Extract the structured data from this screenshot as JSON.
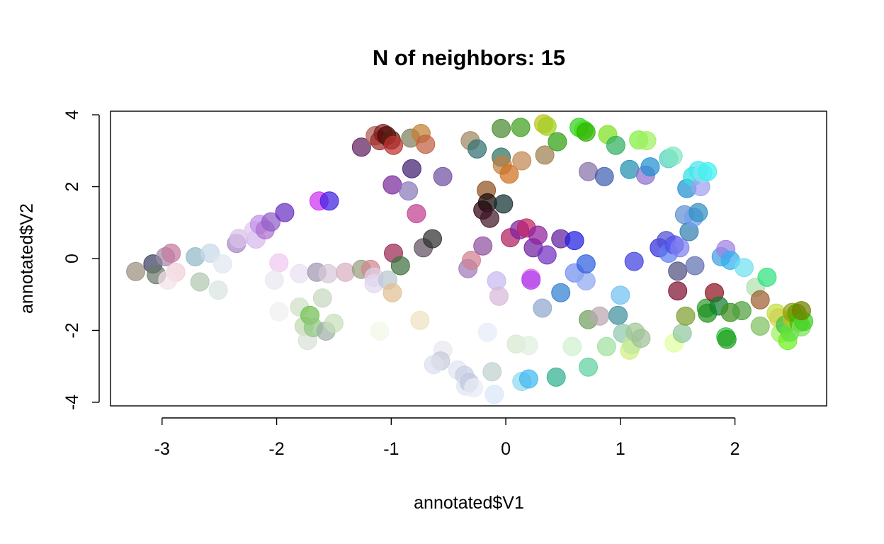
{
  "chart_data": {
    "type": "scatter",
    "title": "N of neighbors: 15",
    "xlabel": "annotated$V1",
    "ylabel": "annotated$V2",
    "xlim": [
      -3.45,
      2.8
    ],
    "ylim": [
      -4.1,
      4.1
    ],
    "xticks": [
      -3,
      -2,
      -1,
      0,
      1,
      2
    ],
    "yticks": [
      -4,
      -2,
      0,
      2,
      4
    ],
    "xtick_labels": [
      "-3",
      "-2",
      "-1",
      "0",
      "1",
      "2"
    ],
    "ytick_labels": [
      "-4",
      "-2",
      "0",
      "2",
      "4"
    ],
    "grid": false,
    "legend": "none",
    "marker": "filled circle, semi-transparent",
    "points": [
      {
        "x": -3.23,
        "y": -0.36,
        "color": "#9c9080"
      },
      {
        "x": -3.08,
        "y": -0.15,
        "color": "#3c4060"
      },
      {
        "x": -3.05,
        "y": -0.45,
        "color": "#6a7a68"
      },
      {
        "x": -2.97,
        "y": 0.05,
        "color": "#a08aa8"
      },
      {
        "x": -2.92,
        "y": 0.15,
        "color": "#c8789c"
      },
      {
        "x": -2.88,
        "y": -0.38,
        "color": "#f0d0d8"
      },
      {
        "x": -2.95,
        "y": -0.6,
        "color": "#f4e0e8"
      },
      {
        "x": -2.71,
        "y": 0.05,
        "color": "#90b8c8"
      },
      {
        "x": -2.67,
        "y": -0.65,
        "color": "#b0c8b0"
      },
      {
        "x": -2.58,
        "y": 0.15,
        "color": "#c8d8e8"
      },
      {
        "x": -2.51,
        "y": -0.88,
        "color": "#d8e4e0"
      },
      {
        "x": -2.47,
        "y": -0.15,
        "color": "#e0e8f0"
      },
      {
        "x": -2.35,
        "y": 0.42,
        "color": "#a888c8"
      },
      {
        "x": -2.33,
        "y": 0.56,
        "color": "#d8c0e8"
      },
      {
        "x": -2.18,
        "y": 0.54,
        "color": "#d8b8f0"
      },
      {
        "x": -2.2,
        "y": 0.78,
        "color": "#e0c8f0"
      },
      {
        "x": -2.15,
        "y": 0.95,
        "color": "#c090e8"
      },
      {
        "x": -2.1,
        "y": 0.8,
        "color": "#b070d0"
      },
      {
        "x": -2.05,
        "y": 1.02,
        "color": "#9060c8"
      },
      {
        "x": -1.93,
        "y": 1.28,
        "color": "#6a30c0"
      },
      {
        "x": -1.98,
        "y": -0.12,
        "color": "#f0c8f0"
      },
      {
        "x": -2.02,
        "y": -0.6,
        "color": "#e8e8f0"
      },
      {
        "x": -1.98,
        "y": -1.48,
        "color": "#f0f0f0"
      },
      {
        "x": -1.8,
        "y": -0.42,
        "color": "#e8e0f0"
      },
      {
        "x": -1.8,
        "y": -1.35,
        "color": "#d0e0c8"
      },
      {
        "x": -1.76,
        "y": -1.88,
        "color": "#c0d8b0"
      },
      {
        "x": -1.73,
        "y": -2.28,
        "color": "#d8e0d8"
      },
      {
        "x": -1.71,
        "y": -1.58,
        "color": "#70c050"
      },
      {
        "x": -1.68,
        "y": -1.92,
        "color": "#90c880"
      },
      {
        "x": -1.65,
        "y": -0.38,
        "color": "#a098b0"
      },
      {
        "x": -1.63,
        "y": 1.6,
        "color": "#d030f0"
      },
      {
        "x": -1.6,
        "y": -1.1,
        "color": "#c8d8c0"
      },
      {
        "x": -1.57,
        "y": -2.02,
        "color": "#a0b0a8"
      },
      {
        "x": -1.55,
        "y": -0.42,
        "color": "#d8c8d8"
      },
      {
        "x": -1.54,
        "y": 1.6,
        "color": "#4020e0"
      },
      {
        "x": -1.5,
        "y": -1.8,
        "color": "#c8e0b8"
      },
      {
        "x": -1.4,
        "y": -0.38,
        "color": "#d8b0c0"
      },
      {
        "x": -1.26,
        "y": -0.3,
        "color": "#98a080"
      },
      {
        "x": -1.26,
        "y": 3.1,
        "color": "#602060"
      },
      {
        "x": -1.18,
        "y": -0.3,
        "color": "#d08890"
      },
      {
        "x": -1.15,
        "y": -0.52,
        "color": "#e0d0e8"
      },
      {
        "x": -1.15,
        "y": -0.7,
        "color": "#e0d8f0"
      },
      {
        "x": -1.14,
        "y": 3.42,
        "color": "#b06050"
      },
      {
        "x": -1.1,
        "y": 3.28,
        "color": "#a02828"
      },
      {
        "x": -1.07,
        "y": 3.48,
        "color": "#802020"
      },
      {
        "x": -1.04,
        "y": 3.42,
        "color": "#500808"
      },
      {
        "x": -1.0,
        "y": 3.3,
        "color": "#582010"
      },
      {
        "x": -0.98,
        "y": 3.15,
        "color": "#c03030"
      },
      {
        "x": -1.1,
        "y": -2.02,
        "color": "#f0f8e8"
      },
      {
        "x": -1.03,
        "y": -0.6,
        "color": "#b8c8d0"
      },
      {
        "x": -0.99,
        "y": 2.05,
        "color": "#7a2a9a"
      },
      {
        "x": -0.98,
        "y": 0.15,
        "color": "#982850"
      },
      {
        "x": -0.99,
        "y": -0.95,
        "color": "#e0c090"
      },
      {
        "x": -0.92,
        "y": -0.2,
        "color": "#407040"
      },
      {
        "x": -0.85,
        "y": 1.88,
        "color": "#8878b8"
      },
      {
        "x": -0.83,
        "y": 3.35,
        "color": "#808060"
      },
      {
        "x": -0.82,
        "y": 2.5,
        "color": "#402070"
      },
      {
        "x": -0.78,
        "y": 1.25,
        "color": "#c04090"
      },
      {
        "x": -0.75,
        "y": -1.72,
        "color": "#f0e0c0"
      },
      {
        "x": -0.74,
        "y": 3.48,
        "color": "#c08030"
      },
      {
        "x": -0.72,
        "y": 0.3,
        "color": "#605060"
      },
      {
        "x": -0.7,
        "y": 3.18,
        "color": "#c06040"
      },
      {
        "x": -0.64,
        "y": 0.55,
        "color": "#303030"
      },
      {
        "x": -0.55,
        "y": 2.28,
        "color": "#7050a0"
      },
      {
        "x": -0.55,
        "y": -2.55,
        "color": "#e8e8f0"
      },
      {
        "x": -0.57,
        "y": -2.85,
        "color": "#c8ccd8"
      },
      {
        "x": -0.63,
        "y": -2.95,
        "color": "#dde0f0"
      },
      {
        "x": -0.42,
        "y": -3.1,
        "color": "#e0e4f4"
      },
      {
        "x": -0.36,
        "y": -3.25,
        "color": "#c8d0e0"
      },
      {
        "x": -0.35,
        "y": -3.55,
        "color": "#dfe4ee"
      },
      {
        "x": -0.32,
        "y": -3.45,
        "color": "#c0c8e0"
      },
      {
        "x": -0.28,
        "y": -3.6,
        "color": "#e8ecf4"
      },
      {
        "x": -0.33,
        "y": -0.28,
        "color": "#a078b8"
      },
      {
        "x": -0.3,
        "y": -0.05,
        "color": "#d08090"
      },
      {
        "x": -0.31,
        "y": 3.28,
        "color": "#a08860"
      },
      {
        "x": -0.25,
        "y": 3.05,
        "color": "#307070"
      },
      {
        "x": -0.2,
        "y": 0.35,
        "color": "#9050a0"
      },
      {
        "x": -0.2,
        "y": 1.35,
        "color": "#300010"
      },
      {
        "x": -0.17,
        "y": 1.9,
        "color": "#905020"
      },
      {
        "x": -0.16,
        "y": 1.55,
        "color": "#180808"
      },
      {
        "x": -0.14,
        "y": 1.12,
        "color": "#401828"
      },
      {
        "x": -0.16,
        "y": -2.05,
        "color": "#e8ecf8"
      },
      {
        "x": -0.12,
        "y": -3.15,
        "color": "#c0d0d0"
      },
      {
        "x": -0.1,
        "y": -3.78,
        "color": "#d8e8f8"
      },
      {
        "x": -0.08,
        "y": -0.62,
        "color": "#c8b8f0"
      },
      {
        "x": -0.06,
        "y": -1.05,
        "color": "#d8b8d8"
      },
      {
        "x": -0.04,
        "y": 3.62,
        "color": "#4a8a30"
      },
      {
        "x": -0.04,
        "y": 2.82,
        "color": "#307060"
      },
      {
        "x": -0.03,
        "y": 2.6,
        "color": "#c08040"
      },
      {
        "x": -0.02,
        "y": 1.52,
        "color": "#103030"
      },
      {
        "x": 0.03,
        "y": 2.35,
        "color": "#d07020"
      },
      {
        "x": 0.04,
        "y": 0.58,
        "color": "#b02060"
      },
      {
        "x": 0.09,
        "y": -2.38,
        "color": "#d8e8d0"
      },
      {
        "x": 0.12,
        "y": 0.8,
        "color": "#8020a0"
      },
      {
        "x": 0.13,
        "y": 3.65,
        "color": "#40a020"
      },
      {
        "x": 0.14,
        "y": 2.72,
        "color": "#c08850"
      },
      {
        "x": 0.14,
        "y": -3.42,
        "color": "#90d8f0"
      },
      {
        "x": 0.18,
        "y": 0.85,
        "color": "#c02060"
      },
      {
        "x": 0.2,
        "y": -2.42,
        "color": "#e0f0e0"
      },
      {
        "x": 0.2,
        "y": -3.35,
        "color": "#40b8f0"
      },
      {
        "x": 0.22,
        "y": -0.55,
        "color": "#e070e0"
      },
      {
        "x": 0.22,
        "y": -0.6,
        "color": "#b040f0"
      },
      {
        "x": 0.24,
        "y": 0.3,
        "color": "#7020a0"
      },
      {
        "x": 0.28,
        "y": 0.65,
        "color": "#9020a0"
      },
      {
        "x": 0.32,
        "y": -1.38,
        "color": "#90a8d0"
      },
      {
        "x": 0.33,
        "y": 3.75,
        "color": "#c0c020"
      },
      {
        "x": 0.34,
        "y": 2.88,
        "color": "#a08050"
      },
      {
        "x": 0.36,
        "y": 3.68,
        "color": "#a0d020"
      },
      {
        "x": 0.36,
        "y": 0.1,
        "color": "#7030c0"
      },
      {
        "x": 0.45,
        "y": 3.25,
        "color": "#30a010"
      },
      {
        "x": 0.44,
        "y": -3.3,
        "color": "#30b090"
      },
      {
        "x": 0.48,
        "y": -0.95,
        "color": "#3080d0"
      },
      {
        "x": 0.48,
        "y": 0.55,
        "color": "#6020a0"
      },
      {
        "x": 0.58,
        "y": -2.45,
        "color": "#d0f0d0"
      },
      {
        "x": 0.6,
        "y": 0.5,
        "color": "#2020e0"
      },
      {
        "x": 0.6,
        "y": -0.4,
        "color": "#7090f0"
      },
      {
        "x": 0.64,
        "y": 3.65,
        "color": "#30d020"
      },
      {
        "x": 0.68,
        "y": 3.58,
        "color": "#40e020"
      },
      {
        "x": 0.7,
        "y": 3.52,
        "color": "#30b000"
      },
      {
        "x": 0.7,
        "y": -0.62,
        "color": "#90a8f0"
      },
      {
        "x": 0.7,
        "y": -0.15,
        "color": "#3060e0"
      },
      {
        "x": 0.72,
        "y": 2.42,
        "color": "#8870a8"
      },
      {
        "x": 0.72,
        "y": -1.7,
        "color": "#70a060"
      },
      {
        "x": 0.72,
        "y": -3.02,
        "color": "#60d0a0"
      },
      {
        "x": 0.82,
        "y": -1.6,
        "color": "#b8a8b0"
      },
      {
        "x": 0.86,
        "y": 2.28,
        "color": "#4060b0"
      },
      {
        "x": 0.88,
        "y": -2.45,
        "color": "#a0e0a0"
      },
      {
        "x": 0.89,
        "y": 3.45,
        "color": "#80e020"
      },
      {
        "x": 0.96,
        "y": 3.15,
        "color": "#30b060"
      },
      {
        "x": 0.98,
        "y": -1.58,
        "color": "#4090a0"
      },
      {
        "x": 1.0,
        "y": -1.02,
        "color": "#70c0f0"
      },
      {
        "x": 1.02,
        "y": -2.08,
        "color": "#90c8b0"
      },
      {
        "x": 1.08,
        "y": -2.55,
        "color": "#d0f080"
      },
      {
        "x": 1.1,
        "y": -2.4,
        "color": "#c0e8a0"
      },
      {
        "x": 1.08,
        "y": 2.48,
        "color": "#2090b0"
      },
      {
        "x": 1.12,
        "y": -0.08,
        "color": "#4040e0"
      },
      {
        "x": 1.13,
        "y": -2.05,
        "color": "#a0c890"
      },
      {
        "x": 1.18,
        "y": -2.22,
        "color": "#a0c098"
      },
      {
        "x": 1.16,
        "y": 3.3,
        "color": "#80f040"
      },
      {
        "x": 1.23,
        "y": 3.28,
        "color": "#a0f060"
      },
      {
        "x": 1.22,
        "y": 2.32,
        "color": "#9070d0"
      },
      {
        "x": 1.26,
        "y": 2.55,
        "color": "#2090d0"
      },
      {
        "x": 1.34,
        "y": 0.3,
        "color": "#3030e0"
      },
      {
        "x": 1.4,
        "y": 0.5,
        "color": "#5050d0"
      },
      {
        "x": 1.42,
        "y": 0.15,
        "color": "#6080f0"
      },
      {
        "x": 1.42,
        "y": 2.78,
        "color": "#50d0c0"
      },
      {
        "x": 1.46,
        "y": 2.85,
        "color": "#80e8c0"
      },
      {
        "x": 1.47,
        "y": 0.38,
        "color": "#5050f0"
      },
      {
        "x": 1.47,
        "y": -2.35,
        "color": "#e0ffa0"
      },
      {
        "x": 1.5,
        "y": -0.9,
        "color": "#801030"
      },
      {
        "x": 1.5,
        "y": -0.35,
        "color": "#505080"
      },
      {
        "x": 1.52,
        "y": 0.3,
        "color": "#8080f0"
      },
      {
        "x": 1.54,
        "y": -2.08,
        "color": "#90c8a0"
      },
      {
        "x": 1.56,
        "y": 1.22,
        "color": "#6090d0"
      },
      {
        "x": 1.57,
        "y": -1.6,
        "color": "#80a030"
      },
      {
        "x": 1.58,
        "y": 1.95,
        "color": "#2090d0"
      },
      {
        "x": 1.6,
        "y": 0.75,
        "color": "#3080b0"
      },
      {
        "x": 1.63,
        "y": 2.28,
        "color": "#30e0e0"
      },
      {
        "x": 1.64,
        "y": 1.15,
        "color": "#70a0f0"
      },
      {
        "x": 1.65,
        "y": -0.2,
        "color": "#6070b0"
      },
      {
        "x": 1.68,
        "y": 2.45,
        "color": "#40e8f0"
      },
      {
        "x": 1.68,
        "y": 1.28,
        "color": "#3090c0"
      },
      {
        "x": 1.7,
        "y": 2.0,
        "color": "#a0a0f0"
      },
      {
        "x": 1.72,
        "y": 2.38,
        "color": "#80e8f0"
      },
      {
        "x": 1.75,
        "y": -1.38,
        "color": "#30a030"
      },
      {
        "x": 1.76,
        "y": -1.52,
        "color": "#209020"
      },
      {
        "x": 1.76,
        "y": 2.42,
        "color": "#40f0f0"
      },
      {
        "x": 1.82,
        "y": -0.95,
        "color": "#901020"
      },
      {
        "x": 1.86,
        "y": -1.32,
        "color": "#108030"
      },
      {
        "x": 1.88,
        "y": 0.05,
        "color": "#40a0e0"
      },
      {
        "x": 1.92,
        "y": -2.18,
        "color": "#30c040"
      },
      {
        "x": 1.92,
        "y": 0.25,
        "color": "#a080e0"
      },
      {
        "x": 1.93,
        "y": -2.25,
        "color": "#20a020"
      },
      {
        "x": 1.96,
        "y": -1.5,
        "color": "#409020"
      },
      {
        "x": 1.96,
        "y": -0.05,
        "color": "#30b0f0"
      },
      {
        "x": 2.06,
        "y": -1.45,
        "color": "#50a040"
      },
      {
        "x": 2.08,
        "y": -0.25,
        "color": "#70e0f0"
      },
      {
        "x": 2.18,
        "y": -0.8,
        "color": "#b0e0b0"
      },
      {
        "x": 2.22,
        "y": -1.15,
        "color": "#a06030"
      },
      {
        "x": 2.22,
        "y": -1.88,
        "color": "#80c060"
      },
      {
        "x": 2.28,
        "y": -0.52,
        "color": "#30e080"
      },
      {
        "x": 2.36,
        "y": -1.52,
        "color": "#c0e040"
      },
      {
        "x": 2.38,
        "y": -1.65,
        "color": "#d0d050"
      },
      {
        "x": 2.4,
        "y": -2.08,
        "color": "#a0f060"
      },
      {
        "x": 2.44,
        "y": -1.85,
        "color": "#40c040"
      },
      {
        "x": 2.46,
        "y": -2.28,
        "color": "#70f020"
      },
      {
        "x": 2.48,
        "y": -2.05,
        "color": "#60e040"
      },
      {
        "x": 2.5,
        "y": -1.65,
        "color": "#c0c020"
      },
      {
        "x": 2.5,
        "y": -1.5,
        "color": "#90a010"
      },
      {
        "x": 2.54,
        "y": -1.52,
        "color": "#60a000"
      },
      {
        "x": 2.56,
        "y": -1.78,
        "color": "#40c000"
      },
      {
        "x": 2.58,
        "y": -1.9,
        "color": "#80e060"
      },
      {
        "x": 2.6,
        "y": -1.75,
        "color": "#40d020"
      },
      {
        "x": 2.58,
        "y": -1.45,
        "color": "#708000"
      }
    ]
  }
}
